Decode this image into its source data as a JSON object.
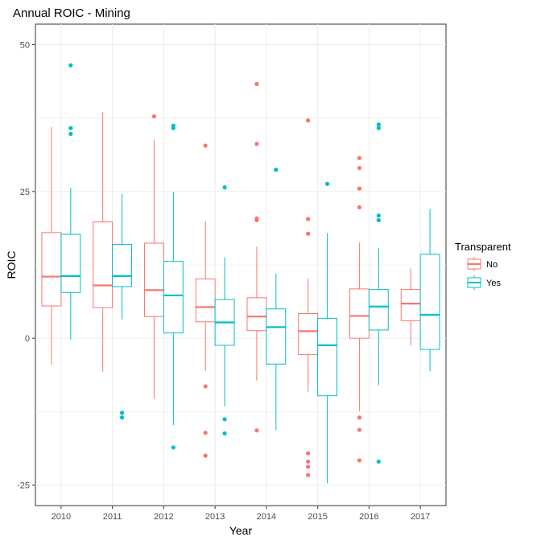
{
  "chart_data": {
    "type": "boxplot",
    "title": "Annual ROIC - Mining",
    "xlabel": "Year",
    "ylabel": "ROIC",
    "categories": [
      "2010",
      "2011",
      "2012",
      "2013",
      "2014",
      "2015",
      "2016",
      "2017"
    ],
    "ylim": [
      -28.5,
      53.5
    ],
    "yticks": [
      -25,
      0,
      25,
      50
    ],
    "grid": true,
    "legend": {
      "title": "Transparent",
      "position": "right",
      "entries": [
        {
          "name": "No",
          "color": "#F8766D"
        },
        {
          "name": "Yes",
          "color": "#00BFC4"
        }
      ]
    },
    "series": [
      {
        "name": "No",
        "color": "#F8766D",
        "boxes": [
          {
            "category": "2010",
            "lower_whisker": -4.5,
            "q1": 5.5,
            "median": 10.5,
            "q3": 18.0,
            "upper_whisker": 36.0,
            "outliers": []
          },
          {
            "category": "2011",
            "lower_whisker": -5.7,
            "q1": 5.2,
            "median": 9.0,
            "q3": 19.8,
            "upper_whisker": 38.5,
            "outliers": []
          },
          {
            "category": "2012",
            "lower_whisker": -10.3,
            "q1": 3.7,
            "median": 8.2,
            "q3": 16.2,
            "upper_whisker": 33.8,
            "outliers": [
              37.8
            ]
          },
          {
            "category": "2013",
            "lower_whisker": -5.6,
            "q1": 2.8,
            "median": 5.3,
            "q3": 10.1,
            "upper_whisker": 20.0,
            "outliers": [
              32.8,
              -8.2,
              -16.1,
              -20.0
            ]
          },
          {
            "category": "2014",
            "lower_whisker": -7.2,
            "q1": 1.3,
            "median": 3.7,
            "q3": 6.9,
            "upper_whisker": 15.6,
            "outliers": [
              43.3,
              33.1,
              20.4,
              20.1,
              -15.7
            ]
          },
          {
            "category": "2015",
            "lower_whisker": -9.1,
            "q1": -2.8,
            "median": 1.2,
            "q3": 4.2,
            "upper_whisker": 10.2,
            "outliers": [
              37.1,
              20.3,
              17.8,
              -19.6,
              -21.0,
              -21.9,
              -23.3
            ]
          },
          {
            "category": "2016",
            "lower_whisker": -12.4,
            "q1": 0.0,
            "median": 3.8,
            "q3": 8.4,
            "upper_whisker": 16.3,
            "outliers": [
              30.7,
              29.0,
              25.5,
              22.3,
              -13.5,
              -15.6,
              -20.8
            ]
          },
          {
            "category": "2017",
            "lower_whisker": -1.2,
            "q1": 3.0,
            "median": 5.9,
            "q3": 8.3,
            "upper_whisker": 11.9,
            "outliers": []
          }
        ]
      },
      {
        "name": "Yes",
        "color": "#00BFC4",
        "boxes": [
          {
            "category": "2010",
            "lower_whisker": -0.2,
            "q1": 7.8,
            "median": 10.6,
            "q3": 17.7,
            "upper_whisker": 25.6,
            "outliers": [
              46.5,
              35.8,
              34.8
            ]
          },
          {
            "category": "2011",
            "lower_whisker": 3.2,
            "q1": 8.8,
            "median": 10.6,
            "q3": 16.0,
            "upper_whisker": 24.6,
            "outliers": [
              -12.7,
              -13.5
            ]
          },
          {
            "category": "2012",
            "lower_whisker": -14.8,
            "q1": 0.9,
            "median": 7.3,
            "q3": 13.1,
            "upper_whisker": 24.9,
            "outliers": [
              36.2,
              35.8,
              -18.6
            ]
          },
          {
            "category": "2013",
            "lower_whisker": -11.6,
            "q1": -1.2,
            "median": 2.7,
            "q3": 6.6,
            "upper_whisker": 13.8,
            "outliers": [
              25.7,
              -13.8,
              -16.2
            ]
          },
          {
            "category": "2014",
            "lower_whisker": -15.6,
            "q1": -4.4,
            "median": 1.9,
            "q3": 5.0,
            "upper_whisker": 11.0,
            "outliers": [
              28.7
            ]
          },
          {
            "category": "2015",
            "lower_whisker": -24.7,
            "q1": -9.8,
            "median": -1.2,
            "q3": 3.4,
            "upper_whisker": 17.9,
            "outliers": [
              26.3
            ]
          },
          {
            "category": "2016",
            "lower_whisker": -8.0,
            "q1": 1.4,
            "median": 5.4,
            "q3": 8.3,
            "upper_whisker": 15.4,
            "outliers": [
              36.4,
              35.8,
              20.9,
              20.1,
              -21.0
            ]
          },
          {
            "category": "2017",
            "lower_whisker": -5.6,
            "q1": -1.9,
            "median": 4.0,
            "q3": 14.3,
            "upper_whisker": 22.0,
            "outliers": []
          }
        ]
      }
    ]
  }
}
